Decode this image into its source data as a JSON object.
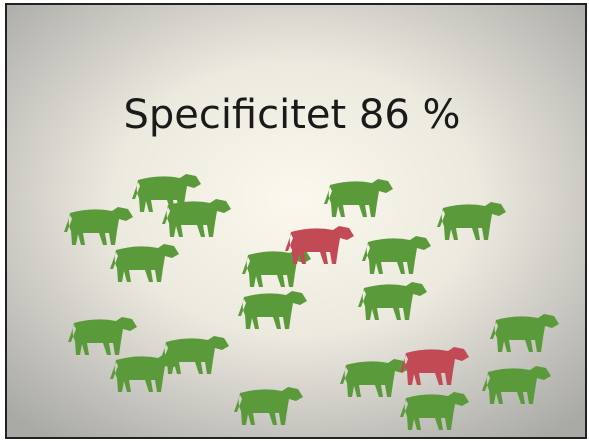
{
  "slide": {
    "title": "Specificitet 86 %"
  }
}
